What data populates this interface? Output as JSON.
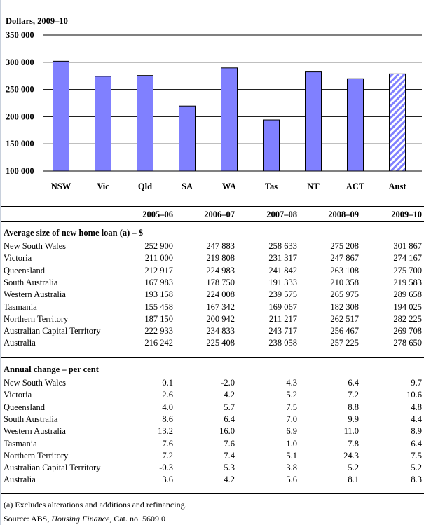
{
  "chart_data": {
    "type": "bar",
    "ylabel": "Dollars, 2009–10",
    "categories": [
      "NSW",
      "Vic",
      "Qld",
      "SA",
      "WA",
      "Tas",
      "NT",
      "ACT",
      "Aust"
    ],
    "values": [
      301867,
      274167,
      275700,
      219583,
      289658,
      194025,
      282225,
      269708,
      278650
    ],
    "ylim": [
      100000,
      350000
    ],
    "yticks": [
      "100 000",
      "150 000",
      "200 000",
      "250 000",
      "300 000",
      "350 000"
    ],
    "ytick_values": [
      100000,
      150000,
      200000,
      250000,
      300000,
      350000
    ],
    "grid": true,
    "colors": {
      "bar": "#8080ff",
      "hatched": "Aust"
    }
  },
  "table": {
    "columns": [
      "2005–06",
      "2006–07",
      "2007–08",
      "2008–09",
      "2009–10"
    ],
    "sections": [
      {
        "title": "Average size of new home loan (a) – $",
        "rows": [
          {
            "label": "New South Wales",
            "values": [
              "252 900",
              "247 883",
              "258 633",
              "275 208",
              "301 867"
            ]
          },
          {
            "label": "Victoria",
            "values": [
              "211 000",
              "219 808",
              "231 317",
              "247 867",
              "274 167"
            ]
          },
          {
            "label": "Queensland",
            "values": [
              "212 917",
              "224 983",
              "241 842",
              "263 108",
              "275 700"
            ]
          },
          {
            "label": "South Australia",
            "values": [
              "167 983",
              "178 750",
              "191 333",
              "210 358",
              "219 583"
            ]
          },
          {
            "label": "Western Australia",
            "values": [
              "193 158",
              "224 008",
              "239 575",
              "265 975",
              "289 658"
            ]
          },
          {
            "label": "Tasmania",
            "values": [
              "155 458",
              "167 342",
              "169 067",
              "182 308",
              "194 025"
            ]
          },
          {
            "label": "Northern Territory",
            "values": [
              "187 150",
              "200 942",
              "211 217",
              "262 517",
              "282 225"
            ]
          },
          {
            "label": "Australian Capital Territory",
            "values": [
              "222 933",
              "234 833",
              "243 717",
              "256 467",
              "269 708"
            ]
          },
          {
            "label": "Australia",
            "values": [
              "216 242",
              "225 408",
              "238 058",
              "257 225",
              "278 650"
            ]
          }
        ]
      },
      {
        "title": "Annual change – per cent",
        "rows": [
          {
            "label": "New South Wales",
            "values": [
              "0.1",
              "-2.0",
              "4.3",
              "6.4",
              "9.7"
            ]
          },
          {
            "label": "Victoria",
            "values": [
              "2.6",
              "4.2",
              "5.2",
              "7.2",
              "10.6"
            ]
          },
          {
            "label": "Queensland",
            "values": [
              "4.0",
              "5.7",
              "7.5",
              "8.8",
              "4.8"
            ]
          },
          {
            "label": "South Australia",
            "values": [
              "8.6",
              "6.4",
              "7.0",
              "9.9",
              "4.4"
            ]
          },
          {
            "label": "Western Australia",
            "values": [
              "13.2",
              "16.0",
              "6.9",
              "11.0",
              "8.9"
            ]
          },
          {
            "label": "Tasmania",
            "values": [
              "7.6",
              "7.6",
              "1.0",
              "7.8",
              "6.4"
            ]
          },
          {
            "label": "Northern Territory",
            "values": [
              "7.2",
              "7.4",
              "5.1",
              "24.3",
              "7.5"
            ]
          },
          {
            "label": "Australian Capital Territory",
            "values": [
              "-0.3",
              "5.3",
              "3.8",
              "5.2",
              "5.2"
            ]
          },
          {
            "label": "Australia",
            "values": [
              "3.6",
              "4.2",
              "5.6",
              "8.1",
              "8.3"
            ]
          }
        ]
      }
    ]
  },
  "notes": {
    "footnote": "(a) Excludes alterations and additions and refinancing.",
    "source_prefix": "Source: ABS, ",
    "source_title": "Housing Finance",
    "source_suffix": ", Cat. no. 5609.0"
  }
}
